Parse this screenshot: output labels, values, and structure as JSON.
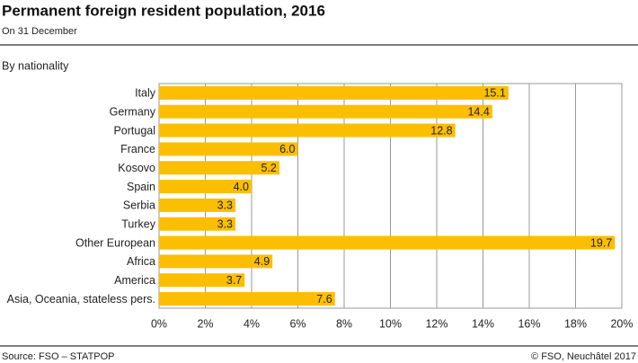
{
  "chart_data": {
    "type": "barh",
    "title": "Permanent foreign resident population, 2016",
    "subtitle": "On 31 December",
    "category_label": "By nationality",
    "categories": [
      "Italy",
      "Germany",
      "Portugal",
      "France",
      "Kosovo",
      "Spain",
      "Serbia",
      "Turkey",
      "Other European",
      "Africa",
      "America",
      "Asia, Oceania, stateless pers."
    ],
    "values": [
      15.1,
      14.4,
      12.8,
      6.0,
      5.2,
      4.0,
      3.3,
      3.3,
      19.7,
      4.9,
      3.7,
      7.6
    ],
    "value_labels": [
      "15.1",
      "14.4",
      "12.8",
      "6.0",
      "5.2",
      "4.0",
      "3.3",
      "3.3",
      "19.7",
      "4.9",
      "3.7",
      "7.6"
    ],
    "color": "#fbbe00",
    "xlim": [
      0,
      20
    ],
    "xticks": [
      {
        "value": 0,
        "label": "0%"
      },
      {
        "value": 2,
        "label": "2%"
      },
      {
        "value": 4,
        "label": "4%"
      },
      {
        "value": 6,
        "label": "6%"
      },
      {
        "value": 8,
        "label": "8%"
      },
      {
        "value": 10,
        "label": "10%"
      },
      {
        "value": 12,
        "label": "12%"
      },
      {
        "value": 14,
        "label": "14%"
      },
      {
        "value": 16,
        "label": "16%"
      },
      {
        "value": 18,
        "label": "18%"
      },
      {
        "value": 20,
        "label": "20%"
      }
    ],
    "grid": true,
    "source": "Source: FSO – STATPOP",
    "credit": "© FSO, Neuchâtel 2017"
  }
}
